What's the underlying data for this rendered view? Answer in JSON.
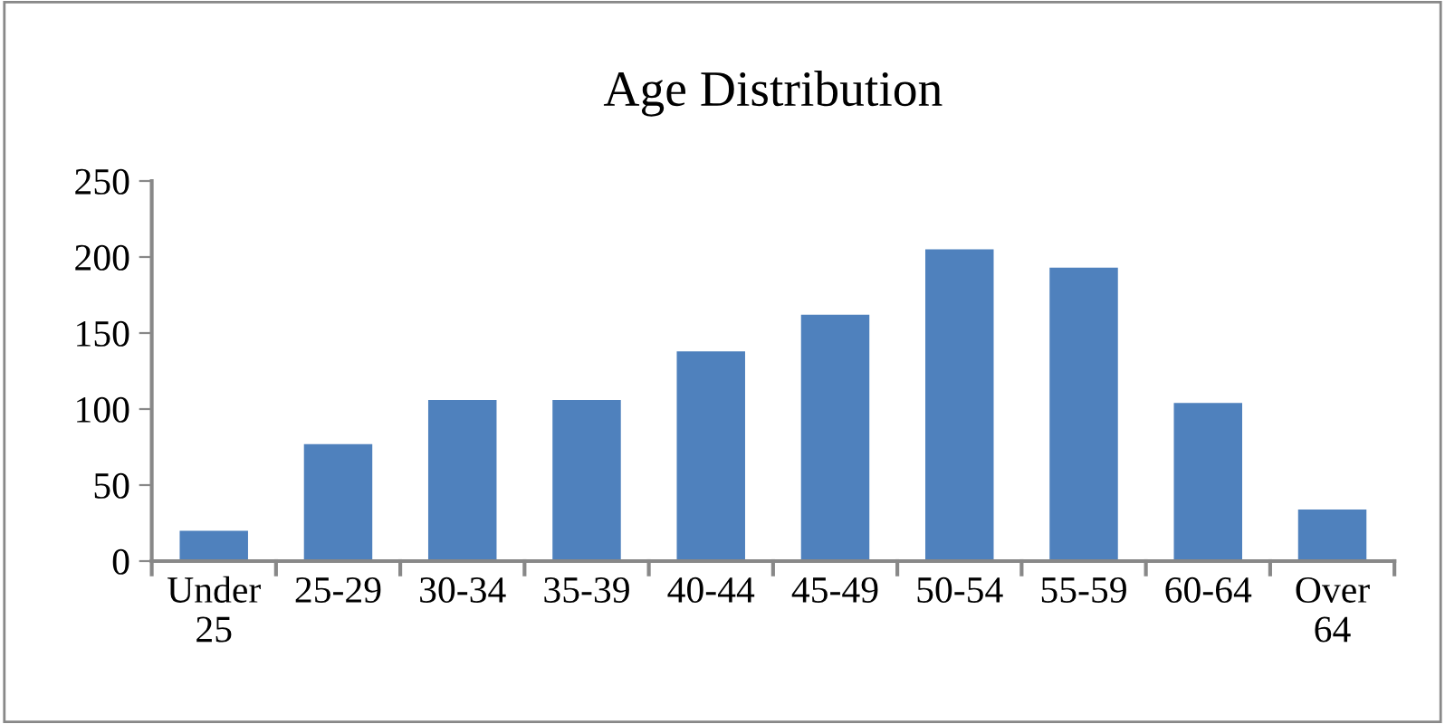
{
  "chart_data": {
    "type": "bar",
    "title": "Age Distribution",
    "categories": [
      "Under\n25",
      "25-29",
      "30-34",
      "35-39",
      "40-44",
      "45-49",
      "50-54",
      "55-59",
      "60-64",
      "Over\n64"
    ],
    "values": [
      20,
      77,
      106,
      106,
      138,
      162,
      205,
      193,
      104,
      34
    ],
    "color": "#4f81bd",
    "ylim": [
      0,
      250
    ],
    "yticks": [
      0,
      50,
      100,
      150,
      200,
      250
    ],
    "grid": false,
    "legend": false
  }
}
